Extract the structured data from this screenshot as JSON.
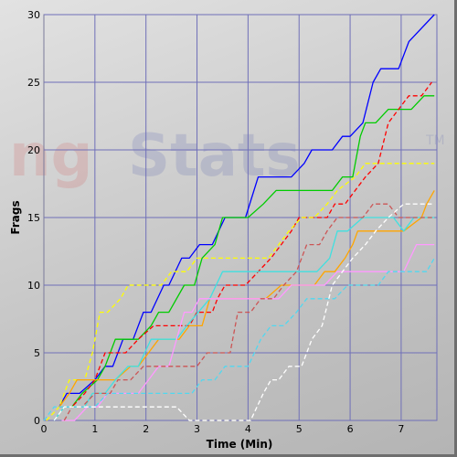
{
  "watermark": {
    "text_a": "ng",
    "text_b": "Stats",
    "tm": "TM"
  },
  "chart_data": {
    "type": "line",
    "title": "",
    "xlabel": "Time (Min)",
    "ylabel": "Frags",
    "xlim": [
      0,
      7.7
    ],
    "ylim": [
      0,
      30
    ],
    "xticks": [
      0,
      1,
      2,
      3,
      4,
      5,
      6,
      7
    ],
    "yticks": [
      0,
      5,
      10,
      15,
      20,
      25,
      30
    ],
    "grid": true,
    "legend": "none",
    "series": [
      {
        "color": "#0000ff",
        "dash": false,
        "points": [
          [
            0.3,
            1
          ],
          [
            0.45,
            2
          ],
          [
            0.7,
            2
          ],
          [
            1.0,
            3
          ],
          [
            1.2,
            4
          ],
          [
            1.35,
            4
          ],
          [
            1.55,
            6
          ],
          [
            1.75,
            6
          ],
          [
            1.95,
            8
          ],
          [
            2.1,
            8
          ],
          [
            2.35,
            10
          ],
          [
            2.45,
            10
          ],
          [
            2.7,
            12
          ],
          [
            2.85,
            12
          ],
          [
            3.05,
            13
          ],
          [
            3.3,
            13
          ],
          [
            3.55,
            15
          ],
          [
            3.75,
            15
          ],
          [
            3.95,
            15
          ],
          [
            4.2,
            18
          ],
          [
            4.85,
            18
          ],
          [
            5.1,
            19
          ],
          [
            5.25,
            20
          ],
          [
            5.65,
            20
          ],
          [
            5.85,
            21
          ],
          [
            6.0,
            21
          ],
          [
            6.25,
            22
          ],
          [
            6.45,
            25
          ],
          [
            6.6,
            26
          ],
          [
            6.95,
            26
          ],
          [
            7.15,
            28
          ],
          [
            7.65,
            30
          ]
        ]
      },
      {
        "color": "#00cc00",
        "dash": false,
        "points": [
          [
            0.35,
            1
          ],
          [
            0.55,
            1
          ],
          [
            0.75,
            2
          ],
          [
            1.05,
            3
          ],
          [
            1.2,
            4
          ],
          [
            1.4,
            6
          ],
          [
            1.65,
            6
          ],
          [
            1.85,
            6
          ],
          [
            2.1,
            7
          ],
          [
            2.25,
            8
          ],
          [
            2.45,
            8
          ],
          [
            2.75,
            10
          ],
          [
            2.95,
            10
          ],
          [
            3.1,
            12
          ],
          [
            3.35,
            13
          ],
          [
            3.5,
            15
          ],
          [
            4.0,
            15
          ],
          [
            4.3,
            16
          ],
          [
            4.55,
            17
          ],
          [
            5.65,
            17
          ],
          [
            5.85,
            18
          ],
          [
            6.05,
            18
          ],
          [
            6.2,
            21
          ],
          [
            6.3,
            22
          ],
          [
            6.5,
            22
          ],
          [
            6.75,
            23
          ],
          [
            7.2,
            23
          ],
          [
            7.45,
            24
          ],
          [
            7.65,
            24
          ]
        ]
      },
      {
        "color": "#ff0000",
        "dash": true,
        "points": [
          [
            0.3,
            1
          ],
          [
            0.55,
            1
          ],
          [
            0.8,
            2
          ],
          [
            1.0,
            3
          ],
          [
            1.2,
            5
          ],
          [
            1.6,
            5
          ],
          [
            1.85,
            6
          ],
          [
            2.15,
            7
          ],
          [
            2.3,
            7
          ],
          [
            2.6,
            7
          ],
          [
            2.85,
            7
          ],
          [
            3.0,
            8
          ],
          [
            3.3,
            8
          ],
          [
            3.4,
            9
          ],
          [
            3.55,
            10
          ],
          [
            3.7,
            10
          ],
          [
            3.95,
            10
          ],
          [
            4.2,
            11
          ],
          [
            4.45,
            12
          ],
          [
            4.65,
            13
          ],
          [
            4.85,
            14
          ],
          [
            5.0,
            15
          ],
          [
            5.55,
            15
          ],
          [
            5.7,
            16
          ],
          [
            5.9,
            16
          ],
          [
            6.1,
            17
          ],
          [
            6.3,
            18
          ],
          [
            6.55,
            19
          ],
          [
            6.75,
            22
          ],
          [
            6.95,
            23
          ],
          [
            7.15,
            24
          ],
          [
            7.4,
            24
          ],
          [
            7.6,
            25
          ]
        ]
      },
      {
        "color": "#ffff00",
        "dash": true,
        "points": [
          [
            0.05,
            0
          ],
          [
            0.3,
            1
          ],
          [
            0.5,
            3
          ],
          [
            0.8,
            3
          ],
          [
            0.95,
            5
          ],
          [
            1.1,
            8
          ],
          [
            1.25,
            8
          ],
          [
            1.5,
            9
          ],
          [
            1.65,
            10
          ],
          [
            2.3,
            10
          ],
          [
            2.5,
            11
          ],
          [
            2.8,
            11
          ],
          [
            3.0,
            12
          ],
          [
            3.15,
            12
          ],
          [
            4.4,
            12
          ],
          [
            4.6,
            13
          ],
          [
            4.8,
            14
          ],
          [
            5.05,
            15
          ],
          [
            5.3,
            15
          ],
          [
            5.55,
            16
          ],
          [
            5.75,
            17
          ],
          [
            6.1,
            18
          ],
          [
            6.3,
            19
          ],
          [
            7.65,
            19
          ]
        ]
      },
      {
        "color": "#ffa500",
        "dash": false,
        "points": [
          [
            0.3,
            1
          ],
          [
            0.5,
            2
          ],
          [
            0.65,
            3
          ],
          [
            1.15,
            3
          ],
          [
            1.4,
            3
          ],
          [
            1.7,
            4
          ],
          [
            1.85,
            4
          ],
          [
            2.05,
            5
          ],
          [
            2.25,
            6
          ],
          [
            2.4,
            6
          ],
          [
            2.65,
            6
          ],
          [
            2.85,
            7
          ],
          [
            3.1,
            7
          ],
          [
            3.25,
            9
          ],
          [
            4.1,
            9
          ],
          [
            4.35,
            9
          ],
          [
            4.65,
            10
          ],
          [
            4.9,
            10
          ],
          [
            5.15,
            10
          ],
          [
            5.3,
            10
          ],
          [
            5.5,
            11
          ],
          [
            5.7,
            11
          ],
          [
            5.9,
            12
          ],
          [
            6.05,
            13
          ],
          [
            6.15,
            14
          ],
          [
            7.05,
            14
          ],
          [
            7.4,
            15
          ],
          [
            7.5,
            16
          ],
          [
            7.65,
            17
          ]
        ]
      },
      {
        "color": "#40e0e0",
        "dash": false,
        "points": [
          [
            0.2,
            0
          ],
          [
            0.4,
            1
          ],
          [
            0.8,
            1
          ],
          [
            0.95,
            2
          ],
          [
            1.2,
            2
          ],
          [
            1.4,
            3
          ],
          [
            1.65,
            4
          ],
          [
            1.85,
            4
          ],
          [
            2.1,
            6
          ],
          [
            2.3,
            6
          ],
          [
            2.6,
            6
          ],
          [
            2.8,
            7
          ],
          [
            3.25,
            9
          ],
          [
            3.5,
            11
          ],
          [
            3.65,
            11
          ],
          [
            3.9,
            11
          ],
          [
            4.1,
            11
          ],
          [
            4.4,
            11
          ],
          [
            4.6,
            11
          ],
          [
            4.85,
            11
          ],
          [
            5.0,
            11
          ],
          [
            5.35,
            11
          ],
          [
            5.6,
            12
          ],
          [
            5.75,
            14
          ],
          [
            5.95,
            14
          ],
          [
            6.25,
            15
          ],
          [
            6.85,
            15
          ],
          [
            7.05,
            14
          ],
          [
            7.25,
            15
          ],
          [
            7.65,
            15
          ]
        ]
      },
      {
        "color": "#ff99ff",
        "dash": false,
        "points": [
          [
            0.35,
            0
          ],
          [
            0.6,
            0
          ],
          [
            0.85,
            1
          ],
          [
            1.05,
            1
          ],
          [
            1.25,
            2
          ],
          [
            1.85,
            2
          ],
          [
            2.05,
            3
          ],
          [
            2.25,
            4
          ],
          [
            2.45,
            4
          ],
          [
            2.6,
            6
          ],
          [
            2.75,
            8
          ],
          [
            2.9,
            8
          ],
          [
            3.05,
            9
          ],
          [
            3.3,
            9
          ],
          [
            3.5,
            9
          ],
          [
            3.75,
            9
          ],
          [
            4.35,
            9
          ],
          [
            4.6,
            9
          ],
          [
            4.85,
            10
          ],
          [
            5.2,
            10
          ],
          [
            5.5,
            10
          ],
          [
            5.75,
            11
          ],
          [
            5.95,
            11
          ],
          [
            6.25,
            11
          ],
          [
            6.5,
            11
          ],
          [
            7.05,
            11
          ],
          [
            7.3,
            13
          ],
          [
            7.65,
            13
          ]
        ]
      },
      {
        "color": "#cc5555",
        "dash": true,
        "points": [
          [
            0.4,
            0
          ],
          [
            0.55,
            1
          ],
          [
            0.75,
            1
          ],
          [
            1.0,
            2
          ],
          [
            1.3,
            2
          ],
          [
            1.45,
            3
          ],
          [
            1.7,
            3
          ],
          [
            1.95,
            4
          ],
          [
            2.15,
            4
          ],
          [
            2.35,
            4
          ],
          [
            2.45,
            4
          ],
          [
            2.75,
            4
          ],
          [
            3.0,
            4
          ],
          [
            3.2,
            5
          ],
          [
            3.4,
            5
          ],
          [
            3.65,
            5
          ],
          [
            3.8,
            8
          ],
          [
            4.05,
            8
          ],
          [
            4.25,
            9
          ],
          [
            4.5,
            9
          ],
          [
            4.7,
            10
          ],
          [
            4.95,
            11
          ],
          [
            5.15,
            13
          ],
          [
            5.4,
            13
          ],
          [
            5.55,
            14
          ],
          [
            5.75,
            15
          ],
          [
            6.0,
            15
          ],
          [
            6.25,
            15
          ],
          [
            6.45,
            16
          ],
          [
            6.75,
            16
          ],
          [
            6.95,
            15
          ],
          [
            7.15,
            15
          ],
          [
            7.4,
            15
          ],
          [
            7.65,
            15
          ]
        ]
      },
      {
        "color": "#50d8f0",
        "dash": true,
        "points": [
          [
            0.0,
            0
          ],
          [
            0.2,
            1
          ],
          [
            0.7,
            1
          ],
          [
            1.0,
            1
          ],
          [
            1.25,
            2
          ],
          [
            1.5,
            2
          ],
          [
            2.0,
            2
          ],
          [
            2.3,
            2
          ],
          [
            2.6,
            2
          ],
          [
            2.9,
            2
          ],
          [
            3.1,
            3
          ],
          [
            3.35,
            3
          ],
          [
            3.55,
            4
          ],
          [
            3.8,
            4
          ],
          [
            4.0,
            4
          ],
          [
            4.25,
            6
          ],
          [
            4.45,
            7
          ],
          [
            4.7,
            7
          ],
          [
            4.95,
            8
          ],
          [
            5.15,
            9
          ],
          [
            5.45,
            9
          ],
          [
            5.7,
            9
          ],
          [
            5.95,
            10
          ],
          [
            6.15,
            10
          ],
          [
            6.35,
            10
          ],
          [
            6.55,
            10
          ],
          [
            6.75,
            11
          ],
          [
            7.0,
            11
          ],
          [
            7.5,
            11
          ],
          [
            7.65,
            12
          ]
        ]
      },
      {
        "color": "#ffffff",
        "dash": true,
        "points": [
          [
            0.2,
            0
          ],
          [
            0.4,
            1
          ],
          [
            0.6,
            1
          ],
          [
            1.0,
            1
          ],
          [
            1.3,
            1
          ],
          [
            1.6,
            1
          ],
          [
            1.9,
            1
          ],
          [
            2.1,
            1
          ],
          [
            2.4,
            1
          ],
          [
            2.6,
            1
          ],
          [
            2.85,
            0
          ],
          [
            3.15,
            0
          ],
          [
            3.5,
            0
          ],
          [
            3.9,
            0
          ],
          [
            4.05,
            0
          ],
          [
            4.3,
            2
          ],
          [
            4.45,
            3
          ],
          [
            4.6,
            3
          ],
          [
            4.8,
            4
          ],
          [
            5.05,
            4
          ],
          [
            5.25,
            6
          ],
          [
            5.45,
            7
          ],
          [
            5.65,
            10
          ],
          [
            5.85,
            11
          ],
          [
            6.05,
            12
          ],
          [
            6.3,
            13
          ],
          [
            6.5,
            14
          ],
          [
            6.75,
            15
          ],
          [
            7.05,
            16
          ],
          [
            7.3,
            16
          ],
          [
            7.6,
            16
          ]
        ]
      }
    ]
  }
}
